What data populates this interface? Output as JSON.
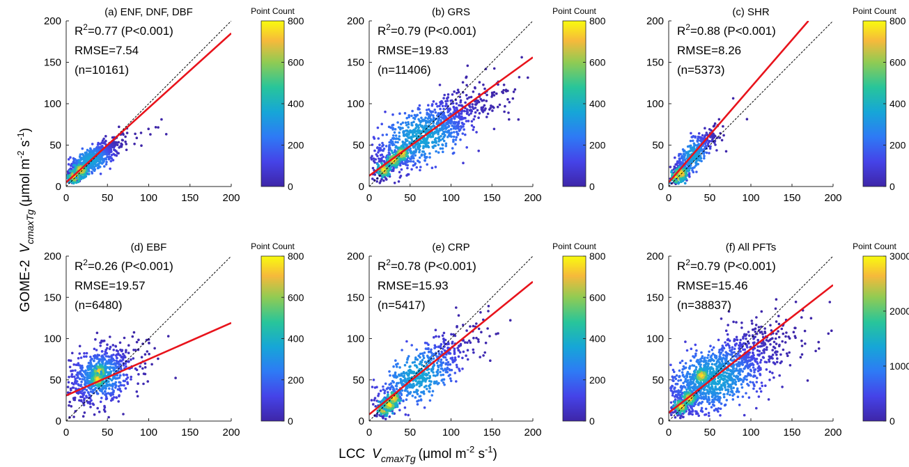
{
  "figure": {
    "ylabel": {
      "prefix": "GOME-2",
      "var": "V",
      "sub": "cmaxTg",
      "units": "(μmol m",
      "exp1": "-2",
      "mid": " s",
      "exp2": "-1",
      "close": ")"
    },
    "xlabel": {
      "prefix": "LCC",
      "var": "V",
      "sub": "cmaxTg",
      "units": "(μmol m",
      "exp1": "-2",
      "mid": " s",
      "exp2": "-1",
      "close": ")"
    }
  },
  "chart_data": [
    {
      "type": "scatter",
      "title": "(a) ENF, DNF, DBF",
      "r2": "0.77",
      "p": "(P<0.001)",
      "rmse": "RMSE=7.54",
      "n": "(n=10161)",
      "xlim": [
        0,
        200
      ],
      "ylim": [
        0,
        200
      ],
      "xticks": [
        0,
        50,
        100,
        150,
        200
      ],
      "yticks": [
        0,
        50,
        100,
        150,
        200
      ],
      "fit": [
        [
          0,
          5
        ],
        [
          200,
          185
        ]
      ],
      "one_to_one": true,
      "colorbar": {
        "label": "Point Count",
        "min": 0,
        "max": 800,
        "ticks": [
          0,
          200,
          400,
          600,
          800
        ]
      },
      "cloud": {
        "cx": 30,
        "cy": 32,
        "sx": 18,
        "sy": 14,
        "rho": 0.85,
        "count": 650,
        "maxx": 130,
        "maxy": 130,
        "core": [
          [
            10,
            12
          ],
          [
            18,
            20
          ]
        ]
      }
    },
    {
      "type": "scatter",
      "title": "(b) GRS",
      "r2": "0.79",
      "p": "(P<0.001)",
      "rmse": "RMSE=19.83",
      "n": "(n=11406)",
      "xlim": [
        0,
        200
      ],
      "ylim": [
        0,
        200
      ],
      "xticks": [
        0,
        50,
        100,
        150,
        200
      ],
      "yticks": [
        0,
        50,
        100,
        150,
        200
      ],
      "fit": [
        [
          0,
          13
        ],
        [
          200,
          156
        ]
      ],
      "one_to_one": true,
      "colorbar": {
        "label": "Point Count",
        "min": 0,
        "max": 800,
        "ticks": [
          0,
          200,
          400,
          600,
          800
        ]
      },
      "cloud": {
        "cx": 65,
        "cy": 60,
        "sx": 40,
        "sy": 28,
        "rho": 0.8,
        "count": 1100,
        "maxx": 200,
        "maxy": 165,
        "core": [
          [
            18,
            20
          ],
          [
            30,
            32
          ],
          [
            40,
            40
          ]
        ]
      }
    },
    {
      "type": "scatter",
      "title": "(c) SHR",
      "r2": "0.88",
      "p": "(P<0.001)",
      "rmse": "RMSE=8.26",
      "n": "(n=5373)",
      "xlim": [
        0,
        200
      ],
      "ylim": [
        0,
        200
      ],
      "xticks": [
        0,
        50,
        100,
        150,
        200
      ],
      "yticks": [
        0,
        50,
        100,
        150,
        200
      ],
      "fit": [
        [
          0,
          5
        ],
        [
          170,
          200
        ]
      ],
      "one_to_one": true,
      "colorbar": {
        "label": "Point Count",
        "min": 0,
        "max": 800,
        "ticks": [
          0,
          200,
          400,
          600,
          800
        ]
      },
      "cloud": {
        "cx": 30,
        "cy": 38,
        "sx": 14,
        "sy": 17,
        "rho": 0.85,
        "count": 420,
        "maxx": 140,
        "maxy": 130,
        "core": [
          [
            10,
            12
          ],
          [
            15,
            16
          ]
        ]
      }
    },
    {
      "type": "scatter",
      "title": "(d) EBF",
      "r2": "0.26",
      "p": "(P<0.001)",
      "rmse": "RMSE=19.57",
      "n": "(n=6480)",
      "xlim": [
        0,
        200
      ],
      "ylim": [
        0,
        200
      ],
      "xticks": [
        0,
        50,
        100,
        150,
        200
      ],
      "yticks": [
        0,
        50,
        100,
        150,
        200
      ],
      "fit": [
        [
          0,
          31
        ],
        [
          200,
          119
        ]
      ],
      "one_to_one": true,
      "colorbar": {
        "label": "Point Count",
        "min": 0,
        "max": 800,
        "ticks": [
          0,
          200,
          400,
          600,
          800
        ]
      },
      "cloud": {
        "cx": 42,
        "cy": 55,
        "sx": 22,
        "sy": 20,
        "rho": 0.35,
        "count": 750,
        "maxx": 160,
        "maxy": 110,
        "core": [
          [
            40,
            60
          ],
          [
            38,
            50
          ]
        ]
      }
    },
    {
      "type": "scatter",
      "title": "(e) CRP",
      "r2": "0.78",
      "p": "(P<0.001)",
      "rmse": "RMSE=15.93",
      "n": "(n=5417)",
      "xlim": [
        0,
        200
      ],
      "ylim": [
        0,
        200
      ],
      "xticks": [
        0,
        50,
        100,
        150,
        200
      ],
      "yticks": [
        0,
        50,
        100,
        150,
        200
      ],
      "fit": [
        [
          0,
          8
        ],
        [
          200,
          169
        ]
      ],
      "one_to_one": true,
      "colorbar": {
        "label": "Point Count",
        "min": 0,
        "max": 800,
        "ticks": [
          0,
          200,
          400,
          600,
          800
        ]
      },
      "cloud": {
        "cx": 60,
        "cy": 55,
        "sx": 35,
        "sy": 30,
        "rho": 0.85,
        "count": 650,
        "maxx": 175,
        "maxy": 160,
        "core": [
          [
            18,
            15
          ],
          [
            25,
            20
          ],
          [
            30,
            28
          ]
        ]
      }
    },
    {
      "type": "scatter",
      "title": "(f) All PFTs",
      "r2": "0.79",
      "p": "(P<0.001)",
      "rmse": "RMSE=15.46",
      "n": "(n=38837)",
      "xlim": [
        0,
        200
      ],
      "ylim": [
        0,
        200
      ],
      "xticks": [
        0,
        50,
        100,
        150,
        200
      ],
      "yticks": [
        0,
        50,
        100,
        150,
        200
      ],
      "fit": [
        [
          0,
          10
        ],
        [
          200,
          165
        ]
      ],
      "one_to_one": true,
      "colorbar": {
        "label": "Point Count",
        "min": 0,
        "max": 3000,
        "ticks": [
          0,
          1000,
          2000,
          3000
        ]
      },
      "cloud": {
        "cx": 55,
        "cy": 52,
        "sx": 40,
        "sy": 30,
        "rho": 0.75,
        "count": 1500,
        "maxx": 200,
        "maxy": 160,
        "core": [
          [
            15,
            18
          ],
          [
            25,
            28
          ],
          [
            40,
            55
          ]
        ]
      }
    }
  ]
}
